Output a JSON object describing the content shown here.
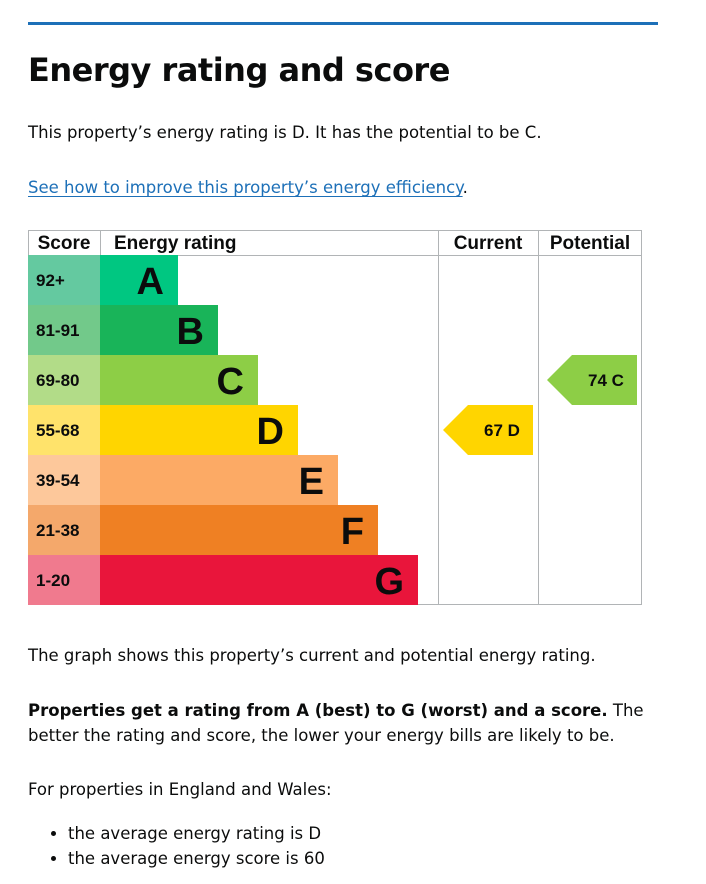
{
  "page": {
    "title": "Energy rating and score",
    "intro": "This property’s energy rating is D. It has the potential to be C.",
    "improve_link": "See how to improve this property’s energy efficiency",
    "improve_link_suffix": ".",
    "graph_note": "The graph shows this property’s current and potential energy rating.",
    "ratings_bold": "Properties get a rating from A (best) to G (worst) and a score.",
    "ratings_rest": " The better the rating and score, the lower your energy bills are likely to be.",
    "region_note": "For properties in England and Wales:",
    "bullets": [
      "the average energy rating is D",
      "the average energy score is 60"
    ]
  },
  "chart_data": {
    "type": "table",
    "headers": {
      "score": "Score",
      "rating": "Energy rating",
      "current": "Current",
      "potential": "Potential"
    },
    "bands": [
      {
        "score": "92+",
        "letter": "A",
        "color": "#00c781",
        "score_bg": "#64c9a0"
      },
      {
        "score": "81-91",
        "letter": "B",
        "color": "#19b459",
        "score_bg": "#72c98a"
      },
      {
        "score": "69-80",
        "letter": "C",
        "color": "#8dce46",
        "score_bg": "#b2dc88"
      },
      {
        "score": "55-68",
        "letter": "D",
        "color": "#ffd500",
        "score_bg": "#ffe36b"
      },
      {
        "score": "39-54",
        "letter": "E",
        "color": "#fcaa65",
        "score_bg": "#fdc89b"
      },
      {
        "score": "21-38",
        "letter": "F",
        "color": "#ef8023",
        "score_bg": "#f4a86b"
      },
      {
        "score": "1-20",
        "letter": "G",
        "color": "#e9153b",
        "score_bg": "#f07a8e"
      }
    ],
    "current": {
      "score": 67,
      "letter": "D",
      "label": "67  D",
      "color": "#ffd500"
    },
    "potential": {
      "score": 74,
      "letter": "C",
      "label": "74  C",
      "color": "#8dce46"
    }
  }
}
